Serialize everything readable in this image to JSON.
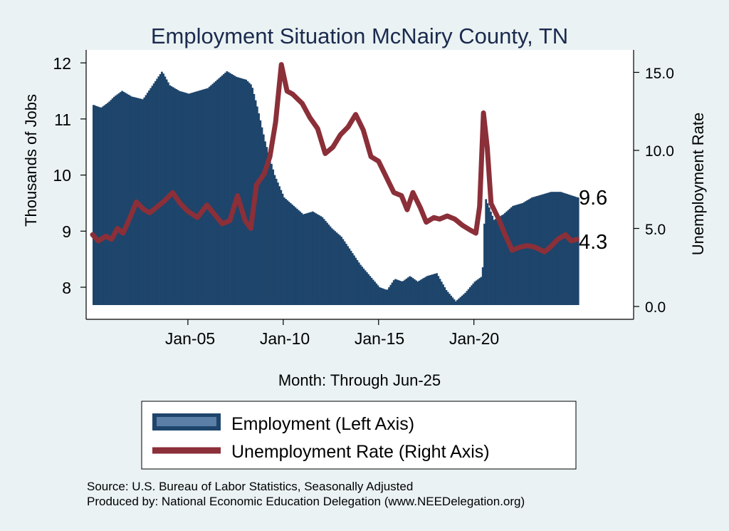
{
  "chart_data": {
    "type": "bar+line",
    "title": "Employment Situation McNairy  County, TN",
    "xlabel": "Month: Through Jun-25",
    "ylabel_left": "Thousands of Jobs",
    "ylabel_right": "Unemployment Rate",
    "x_range": [
      "Jan-00",
      "Jun-25"
    ],
    "x_ticks": [
      "Jan-05",
      "Jan-10",
      "Jan-15",
      "Jan-20"
    ],
    "y_left_ticks": [
      "8",
      "9",
      "10",
      "11",
      "12"
    ],
    "y_left_range": [
      7.7,
      12.2
    ],
    "y_right_ticks": [
      "0.0",
      "5.0",
      "10.0",
      "15.0"
    ],
    "y_right_range": [
      0,
      16.1
    ],
    "last_employment_label": "9.6",
    "last_rate_label": "4.3",
    "colors": {
      "employment": "#1e456b",
      "unemployment": "#8b2f39",
      "background": "#eaf2f3"
    },
    "series": [
      {
        "name": "Employment (Left Axis)",
        "type": "bar",
        "axis": "left",
        "points": [
          [
            2000.0,
            11.25
          ],
          [
            2000.4,
            11.2
          ],
          [
            2000.8,
            11.3
          ],
          [
            2001.1,
            11.4
          ],
          [
            2001.5,
            11.5
          ],
          [
            2002.0,
            11.4
          ],
          [
            2002.6,
            11.35
          ],
          [
            2003.0,
            11.55
          ],
          [
            2003.3,
            11.7
          ],
          [
            2003.6,
            11.85
          ],
          [
            2004.0,
            11.6
          ],
          [
            2004.5,
            11.5
          ],
          [
            2005.0,
            11.45
          ],
          [
            2005.5,
            11.5
          ],
          [
            2006.0,
            11.55
          ],
          [
            2006.5,
            11.7
          ],
          [
            2007.0,
            11.85
          ],
          [
            2007.5,
            11.75
          ],
          [
            2008.0,
            11.7
          ],
          [
            2008.3,
            11.6
          ],
          [
            2008.6,
            11.2
          ],
          [
            2009.0,
            10.6
          ],
          [
            2009.5,
            10.0
          ],
          [
            2010.0,
            9.6
          ],
          [
            2010.5,
            9.45
          ],
          [
            2011.0,
            9.3
          ],
          [
            2011.5,
            9.35
          ],
          [
            2012.0,
            9.25
          ],
          [
            2012.5,
            9.05
          ],
          [
            2013.0,
            8.9
          ],
          [
            2013.5,
            8.65
          ],
          [
            2014.0,
            8.4
          ],
          [
            2014.5,
            8.2
          ],
          [
            2015.0,
            8.0
          ],
          [
            2015.4,
            7.95
          ],
          [
            2015.8,
            8.15
          ],
          [
            2016.2,
            8.1
          ],
          [
            2016.6,
            8.2
          ],
          [
            2017.0,
            8.1
          ],
          [
            2017.5,
            8.2
          ],
          [
            2018.0,
            8.25
          ],
          [
            2018.5,
            7.95
          ],
          [
            2019.0,
            7.75
          ],
          [
            2019.5,
            7.9
          ],
          [
            2020.0,
            8.1
          ],
          [
            2020.4,
            8.2
          ],
          [
            2020.55,
            9.6
          ],
          [
            2021.0,
            9.2
          ],
          [
            2021.5,
            9.3
          ],
          [
            2022.0,
            9.45
          ],
          [
            2022.5,
            9.5
          ],
          [
            2023.0,
            9.6
          ],
          [
            2023.5,
            9.65
          ],
          [
            2024.0,
            9.7
          ],
          [
            2024.5,
            9.7
          ],
          [
            2025.4,
            9.6
          ]
        ]
      },
      {
        "name": "Unemployment Rate (Right Axis)",
        "type": "line",
        "axis": "right",
        "points": [
          [
            2000.0,
            4.6
          ],
          [
            2000.3,
            4.2
          ],
          [
            2000.7,
            4.5
          ],
          [
            2001.0,
            4.3
          ],
          [
            2001.3,
            5.0
          ],
          [
            2001.6,
            4.7
          ],
          [
            2002.0,
            5.8
          ],
          [
            2002.3,
            6.7
          ],
          [
            2002.7,
            6.2
          ],
          [
            2003.0,
            6.0
          ],
          [
            2003.4,
            6.4
          ],
          [
            2003.8,
            6.8
          ],
          [
            2004.2,
            7.3
          ],
          [
            2004.6,
            6.6
          ],
          [
            2005.0,
            6.1
          ],
          [
            2005.5,
            5.7
          ],
          [
            2006.0,
            6.5
          ],
          [
            2006.4,
            5.9
          ],
          [
            2006.8,
            5.3
          ],
          [
            2007.2,
            5.5
          ],
          [
            2007.6,
            7.1
          ],
          [
            2008.0,
            5.5
          ],
          [
            2008.3,
            5.0
          ],
          [
            2008.6,
            7.8
          ],
          [
            2009.0,
            8.5
          ],
          [
            2009.3,
            9.6
          ],
          [
            2009.6,
            11.8
          ],
          [
            2009.9,
            15.5
          ],
          [
            2010.2,
            13.8
          ],
          [
            2010.5,
            13.6
          ],
          [
            2011.0,
            13.0
          ],
          [
            2011.4,
            12.1
          ],
          [
            2011.8,
            11.4
          ],
          [
            2012.2,
            9.8
          ],
          [
            2012.6,
            10.2
          ],
          [
            2013.0,
            11.0
          ],
          [
            2013.4,
            11.5
          ],
          [
            2013.8,
            12.3
          ],
          [
            2014.2,
            11.3
          ],
          [
            2014.6,
            9.6
          ],
          [
            2015.0,
            9.3
          ],
          [
            2015.4,
            8.3
          ],
          [
            2015.8,
            7.3
          ],
          [
            2016.2,
            7.1
          ],
          [
            2016.5,
            6.2
          ],
          [
            2016.8,
            7.3
          ],
          [
            2017.2,
            6.3
          ],
          [
            2017.5,
            5.4
          ],
          [
            2017.9,
            5.7
          ],
          [
            2018.2,
            5.6
          ],
          [
            2018.6,
            5.8
          ],
          [
            2019.0,
            5.6
          ],
          [
            2019.4,
            5.2
          ],
          [
            2019.8,
            4.9
          ],
          [
            2020.1,
            4.7
          ],
          [
            2020.3,
            6.4
          ],
          [
            2020.5,
            12.4
          ],
          [
            2020.7,
            10.2
          ],
          [
            2020.9,
            6.6
          ],
          [
            2021.3,
            5.6
          ],
          [
            2021.6,
            4.7
          ],
          [
            2022.0,
            3.6
          ],
          [
            2022.4,
            3.8
          ],
          [
            2022.8,
            3.9
          ],
          [
            2023.2,
            3.8
          ],
          [
            2023.7,
            3.5
          ],
          [
            2024.0,
            3.8
          ],
          [
            2024.4,
            4.3
          ],
          [
            2024.8,
            4.6
          ],
          [
            2025.1,
            4.2
          ],
          [
            2025.4,
            4.3
          ]
        ]
      }
    ],
    "legend": [
      "Employment (Left Axis)",
      "Unemployment Rate (Right Axis)"
    ]
  },
  "source_lines": [
    "Source: U.S. Bureau of Labor Statistics, Seasonally Adjusted",
    "Produced by: National Economic Education Delegation (www.NEEDelegation.org)"
  ]
}
